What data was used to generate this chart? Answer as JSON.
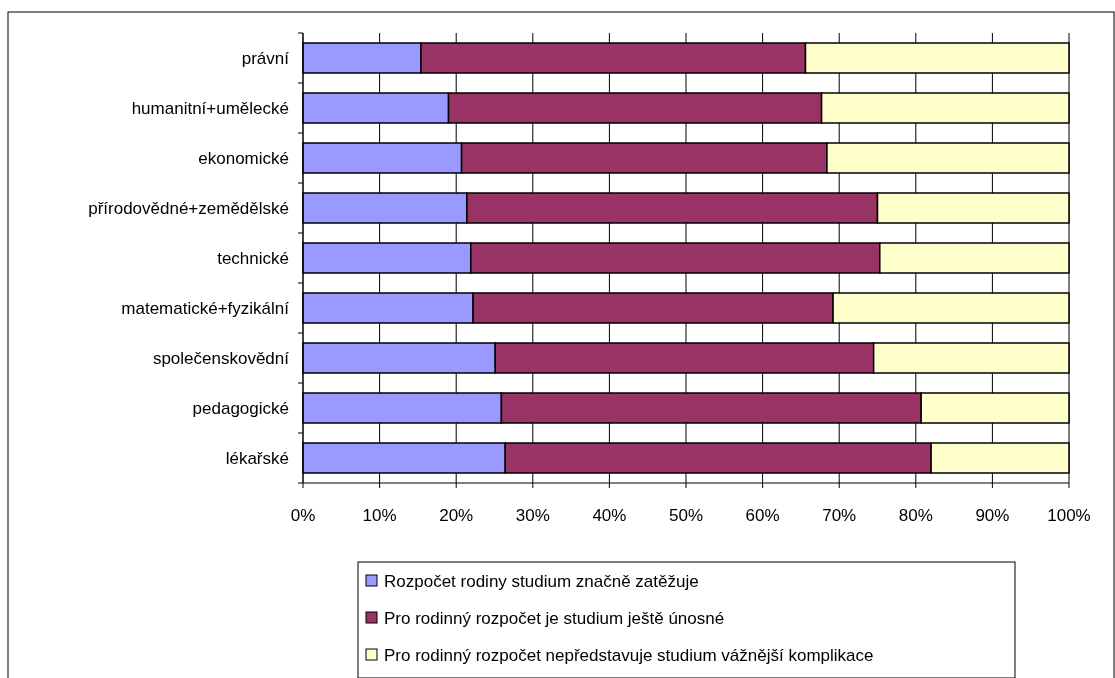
{
  "chart_data": {
    "type": "bar",
    "orientation": "horizontal",
    "stacked": true,
    "categories": [
      "právní",
      "humanitní+umělecké",
      "ekonomické",
      "přírodovědné+zemědělské",
      "technické",
      "matematické+fyzikální",
      "společenskovědní",
      "pedagogické",
      "lékařské"
    ],
    "series": [
      {
        "name": "Rozpočet rodiny studium značně zatěžuje",
        "color": "#9999ff",
        "values": [
          15.4,
          19.0,
          20.7,
          21.4,
          21.9,
          22.2,
          25.1,
          25.9,
          26.4
        ]
      },
      {
        "name": "Pro rodinný rozpočet je studium ještě únosné",
        "color": "#993366",
        "values": [
          50.2,
          48.7,
          47.7,
          53.6,
          53.4,
          47.0,
          49.4,
          54.8,
          55.6
        ]
      },
      {
        "name": "Pro rodinný rozpočet nepředstavuje studium vážnější komplikace",
        "color": "#ffffcc",
        "values": [
          34.4,
          32.3,
          31.6,
          25.0,
          24.7,
          30.8,
          25.5,
          19.3,
          18.0
        ]
      }
    ],
    "xlim": [
      0,
      100
    ],
    "xticks": [
      {
        "value": 0,
        "label": "0%"
      },
      {
        "value": 10,
        "label": "10%"
      },
      {
        "value": 20,
        "label": "20%"
      },
      {
        "value": 30,
        "label": "30%"
      },
      {
        "value": 40,
        "label": "40%"
      },
      {
        "value": 50,
        "label": "50%"
      },
      {
        "value": 60,
        "label": "60%"
      },
      {
        "value": 70,
        "label": "70%"
      },
      {
        "value": 80,
        "label": "80%"
      },
      {
        "value": 90,
        "label": "90%"
      },
      {
        "value": 100,
        "label": "100%"
      }
    ],
    "grid": "x",
    "legend": "bottom"
  }
}
